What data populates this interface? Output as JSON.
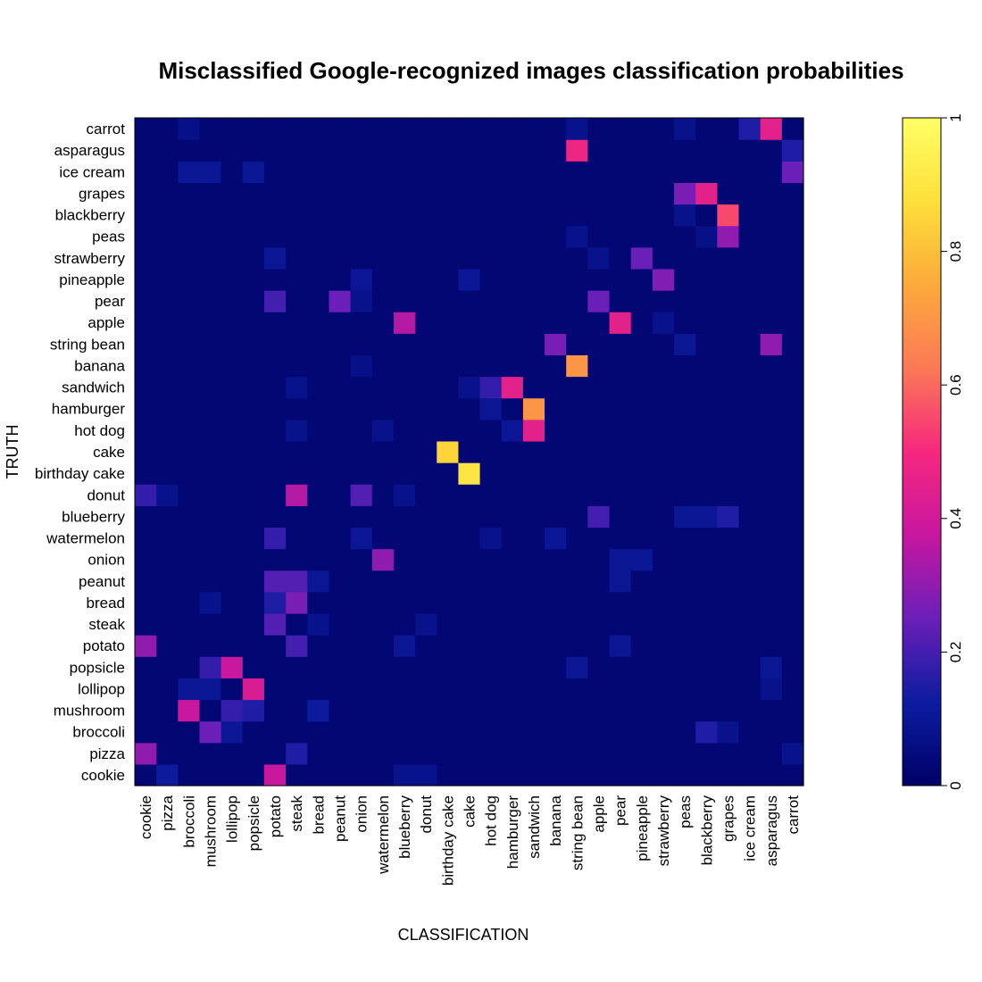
{
  "chart_data": {
    "type": "heatmap",
    "title": "Misclassified Google-recognized images classification probabilities",
    "xlabel": "CLASSIFICATION",
    "ylabel": "TRUTH",
    "x_categories": [
      "cookie",
      "pizza",
      "broccoli",
      "mushroom",
      "lollipop",
      "popsicle",
      "potato",
      "steak",
      "bread",
      "peanut",
      "onion",
      "watermelon",
      "blueberry",
      "donut",
      "birthday cake",
      "cake",
      "hot dog",
      "hamburger",
      "sandwich",
      "banana",
      "string bean",
      "apple",
      "pear",
      "pineapple",
      "strawberry",
      "peas",
      "blackberry",
      "grapes",
      "ice cream",
      "asparagus",
      "carrot"
    ],
    "y_categories": [
      "cookie",
      "pizza",
      "broccoli",
      "mushroom",
      "lollipop",
      "popsicle",
      "potato",
      "steak",
      "bread",
      "peanut",
      "onion",
      "watermelon",
      "blueberry",
      "donut",
      "birthday cake",
      "cake",
      "hot dog",
      "hamburger",
      "sandwich",
      "banana",
      "string bean",
      "apple",
      "pear",
      "pineapple",
      "strawberry",
      "peas",
      "blackberry",
      "grapes",
      "ice cream",
      "asparagus",
      "carrot"
    ],
    "value_range": [
      0,
      1
    ],
    "background_value": 0.03,
    "cells": [
      {
        "truth": "carrot",
        "classification": "ice cream",
        "value": 0.15
      },
      {
        "truth": "carrot",
        "classification": "asparagus",
        "value": 0.45
      },
      {
        "truth": "carrot",
        "classification": "broccoli",
        "value": 0.07
      },
      {
        "truth": "carrot",
        "classification": "string bean",
        "value": 0.08
      },
      {
        "truth": "carrot",
        "classification": "peas",
        "value": 0.08
      },
      {
        "truth": "asparagus",
        "classification": "string bean",
        "value": 0.48
      },
      {
        "truth": "asparagus",
        "classification": "carrot",
        "value": 0.15
      },
      {
        "truth": "ice cream",
        "classification": "carrot",
        "value": 0.25
      },
      {
        "truth": "ice cream",
        "classification": "broccoli",
        "value": 0.1
      },
      {
        "truth": "ice cream",
        "classification": "mushroom",
        "value": 0.1
      },
      {
        "truth": "ice cream",
        "classification": "popsicle",
        "value": 0.1
      },
      {
        "truth": "grapes",
        "classification": "peas",
        "value": 0.27
      },
      {
        "truth": "grapes",
        "classification": "blackberry",
        "value": 0.45
      },
      {
        "truth": "blackberry",
        "classification": "grapes",
        "value": 0.55
      },
      {
        "truth": "blackberry",
        "classification": "peas",
        "value": 0.08
      },
      {
        "truth": "peas",
        "classification": "grapes",
        "value": 0.3
      },
      {
        "truth": "peas",
        "classification": "string bean",
        "value": 0.08
      },
      {
        "truth": "peas",
        "classification": "blackberry",
        "value": 0.07
      },
      {
        "truth": "strawberry",
        "classification": "pineapple",
        "value": 0.25
      },
      {
        "truth": "strawberry",
        "classification": "potato",
        "value": 0.1
      },
      {
        "truth": "strawberry",
        "classification": "apple",
        "value": 0.08
      },
      {
        "truth": "pineapple",
        "classification": "strawberry",
        "value": 0.28
      },
      {
        "truth": "pineapple",
        "classification": "onion",
        "value": 0.1
      },
      {
        "truth": "pineapple",
        "classification": "cake",
        "value": 0.1
      },
      {
        "truth": "pear",
        "classification": "potato",
        "value": 0.2
      },
      {
        "truth": "pear",
        "classification": "peanut",
        "value": 0.25
      },
      {
        "truth": "pear",
        "classification": "apple",
        "value": 0.25
      },
      {
        "truth": "pear",
        "classification": "onion",
        "value": 0.08
      },
      {
        "truth": "apple",
        "classification": "blueberry",
        "value": 0.35
      },
      {
        "truth": "apple",
        "classification": "pear",
        "value": 0.45
      },
      {
        "truth": "apple",
        "classification": "strawberry",
        "value": 0.08
      },
      {
        "truth": "string bean",
        "classification": "banana",
        "value": 0.27
      },
      {
        "truth": "string bean",
        "classification": "asparagus",
        "value": 0.3
      },
      {
        "truth": "string bean",
        "classification": "peas",
        "value": 0.1
      },
      {
        "truth": "banana",
        "classification": "string bean",
        "value": 0.7
      },
      {
        "truth": "banana",
        "classification": "onion",
        "value": 0.07
      },
      {
        "truth": "sandwich",
        "classification": "hamburger",
        "value": 0.45
      },
      {
        "truth": "sandwich",
        "classification": "hot dog",
        "value": 0.18
      },
      {
        "truth": "sandwich",
        "classification": "steak",
        "value": 0.08
      },
      {
        "truth": "sandwich",
        "classification": "cake",
        "value": 0.08
      },
      {
        "truth": "hamburger",
        "classification": "sandwich",
        "value": 0.7
      },
      {
        "truth": "hamburger",
        "classification": "hot dog",
        "value": 0.1
      },
      {
        "truth": "hot dog",
        "classification": "sandwich",
        "value": 0.45
      },
      {
        "truth": "hot dog",
        "classification": "hamburger",
        "value": 0.1
      },
      {
        "truth": "hot dog",
        "classification": "watermelon",
        "value": 0.08
      },
      {
        "truth": "hot dog",
        "classification": "steak",
        "value": 0.08
      },
      {
        "truth": "cake",
        "classification": "birthday cake",
        "value": 0.85
      },
      {
        "truth": "birthday cake",
        "classification": "cake",
        "value": 0.9
      },
      {
        "truth": "donut",
        "classification": "steak",
        "value": 0.35
      },
      {
        "truth": "donut",
        "classification": "onion",
        "value": 0.22
      },
      {
        "truth": "donut",
        "classification": "cookie",
        "value": 0.18
      },
      {
        "truth": "donut",
        "classification": "pizza",
        "value": 0.08
      },
      {
        "truth": "donut",
        "classification": "blueberry",
        "value": 0.08
      },
      {
        "truth": "blueberry",
        "classification": "apple",
        "value": 0.2
      },
      {
        "truth": "blueberry",
        "classification": "grapes",
        "value": 0.15
      },
      {
        "truth": "blueberry",
        "classification": "peas",
        "value": 0.1
      },
      {
        "truth": "blueberry",
        "classification": "blackberry",
        "value": 0.1
      },
      {
        "truth": "watermelon",
        "classification": "potato",
        "value": 0.18
      },
      {
        "truth": "watermelon",
        "classification": "onion",
        "value": 0.1
      },
      {
        "truth": "watermelon",
        "classification": "banana",
        "value": 0.1
      },
      {
        "truth": "watermelon",
        "classification": "hot dog",
        "value": 0.08
      },
      {
        "truth": "onion",
        "classification": "watermelon",
        "value": 0.3
      },
      {
        "truth": "onion",
        "classification": "pear",
        "value": 0.1
      },
      {
        "truth": "onion",
        "classification": "pineapple",
        "value": 0.1
      },
      {
        "truth": "peanut",
        "classification": "potato",
        "value": 0.22
      },
      {
        "truth": "peanut",
        "classification": "steak",
        "value": 0.22
      },
      {
        "truth": "peanut",
        "classification": "bread",
        "value": 0.1
      },
      {
        "truth": "peanut",
        "classification": "pear",
        "value": 0.1
      },
      {
        "truth": "bread",
        "classification": "steak",
        "value": 0.27
      },
      {
        "truth": "bread",
        "classification": "potato",
        "value": 0.15
      },
      {
        "truth": "bread",
        "classification": "mushroom",
        "value": 0.08
      },
      {
        "truth": "steak",
        "classification": "potato",
        "value": 0.22
      },
      {
        "truth": "steak",
        "classification": "bread",
        "value": 0.08
      },
      {
        "truth": "steak",
        "classification": "donut",
        "value": 0.08
      },
      {
        "truth": "potato",
        "classification": "cookie",
        "value": 0.3
      },
      {
        "truth": "potato",
        "classification": "steak",
        "value": 0.2
      },
      {
        "truth": "potato",
        "classification": "blueberry",
        "value": 0.1
      },
      {
        "truth": "potato",
        "classification": "pear",
        "value": 0.1
      },
      {
        "truth": "popsicle",
        "classification": "lollipop",
        "value": 0.38
      },
      {
        "truth": "popsicle",
        "classification": "mushroom",
        "value": 0.18
      },
      {
        "truth": "popsicle",
        "classification": "asparagus",
        "value": 0.1
      },
      {
        "truth": "popsicle",
        "classification": "string bean",
        "value": 0.1
      },
      {
        "truth": "lollipop",
        "classification": "popsicle",
        "value": 0.42
      },
      {
        "truth": "lollipop",
        "classification": "broccoli",
        "value": 0.1
      },
      {
        "truth": "lollipop",
        "classification": "mushroom",
        "value": 0.1
      },
      {
        "truth": "lollipop",
        "classification": "asparagus",
        "value": 0.08
      },
      {
        "truth": "mushroom",
        "classification": "broccoli",
        "value": 0.38
      },
      {
        "truth": "mushroom",
        "classification": "lollipop",
        "value": 0.18
      },
      {
        "truth": "mushroom",
        "classification": "popsicle",
        "value": 0.15
      },
      {
        "truth": "mushroom",
        "classification": "bread",
        "value": 0.12
      },
      {
        "truth": "broccoli",
        "classification": "mushroom",
        "value": 0.25
      },
      {
        "truth": "broccoli",
        "classification": "lollipop",
        "value": 0.1
      },
      {
        "truth": "broccoli",
        "classification": "blackberry",
        "value": 0.15
      },
      {
        "truth": "broccoli",
        "classification": "grapes",
        "value": 0.08
      },
      {
        "truth": "pizza",
        "classification": "cookie",
        "value": 0.3
      },
      {
        "truth": "pizza",
        "classification": "steak",
        "value": 0.15
      },
      {
        "truth": "pizza",
        "classification": "carrot",
        "value": 0.08
      },
      {
        "truth": "cookie",
        "classification": "potato",
        "value": 0.38
      },
      {
        "truth": "cookie",
        "classification": "pizza",
        "value": 0.12
      },
      {
        "truth": "cookie",
        "classification": "blueberry",
        "value": 0.08
      },
      {
        "truth": "cookie",
        "classification": "donut",
        "value": 0.08
      }
    ],
    "colorbar": {
      "ticks": [
        "0",
        "0.2",
        "0.4",
        "0.6",
        "0.8",
        "1"
      ],
      "colors": [
        "#000066",
        "#0c1ca0",
        "#6a1fb8",
        "#c7179f",
        "#f6287e",
        "#fb7956",
        "#fcaa3b",
        "#fde03a",
        "#ffff66"
      ]
    }
  }
}
